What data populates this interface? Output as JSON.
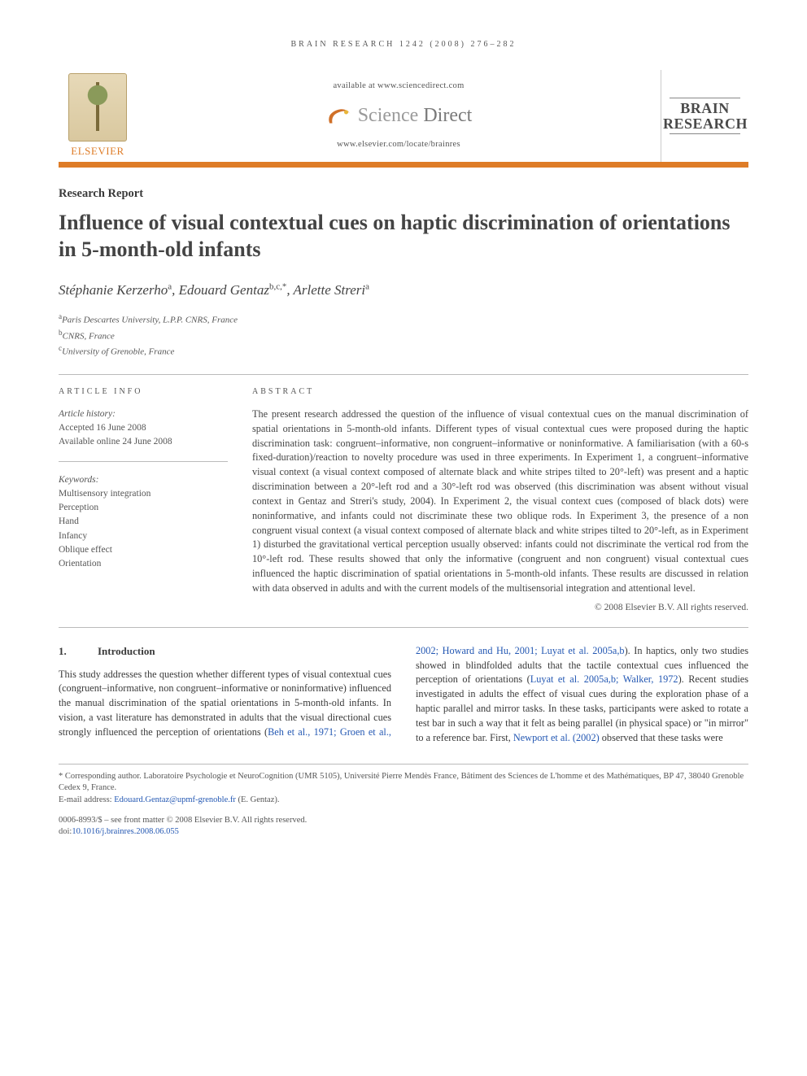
{
  "running_header": "BRAIN RESEARCH 1242 (2008) 276–282",
  "branding": {
    "publisher": "ELSEVIER",
    "available_line": "available at www.sciencedirect.com",
    "sd_name_thin": "Science",
    "sd_name_bold": "Direct",
    "journal_url": "www.elsevier.com/locate/brainres",
    "journal_title_1": "BRAIN",
    "journal_title_2": "RESEARCH",
    "accent_color": "#de7c27"
  },
  "article": {
    "type": "Research Report",
    "title": "Influence of visual contextual cues on haptic discrimination of orientations in 5-month-old infants",
    "authors_html": "Stéphanie Kerzerho<sup>a</sup>, Edouard Gentaz<sup>b,c,*</sup>, Arlette Streri<sup>a</sup>",
    "affiliations": [
      {
        "sup": "a",
        "text": "Paris Descartes University, L.P.P. CNRS, France"
      },
      {
        "sup": "b",
        "text": "CNRS, France"
      },
      {
        "sup": "c",
        "text": "University of Grenoble, France"
      }
    ]
  },
  "article_info": {
    "label": "ARTICLE INFO",
    "history_head": "Article history:",
    "accepted": "Accepted 16 June 2008",
    "online": "Available online 24 June 2008",
    "kw_head": "Keywords:",
    "keywords": [
      "Multisensory integration",
      "Perception",
      "Hand",
      "Infancy",
      "Oblique effect",
      "Orientation"
    ]
  },
  "abstract": {
    "label": "ABSTRACT",
    "text": "The present research addressed the question of the influence of visual contextual cues on the manual discrimination of spatial orientations in 5-month-old infants. Different types of visual contextual cues were proposed during the haptic discrimination task: congruent–informative, non congruent–informative or noninformative. A familiarisation (with a 60-s fixed-duration)/reaction to novelty procedure was used in three experiments. In Experiment 1, a congruent–informative visual context (a visual context composed of alternate black and white stripes tilted to 20°-left) was present and a haptic discrimination between a 20°-left rod and a 30°-left rod was observed (this discrimination was absent without visual context in Gentaz and Streri's study, 2004). In Experiment 2, the visual context cues (composed of black dots) were noninformative, and infants could not discriminate these two oblique rods. In Experiment 3, the presence of a non congruent visual context (a visual context composed of alternate black and white stripes tilted to 20°-left, as in Experiment 1) disturbed the gravitational vertical perception usually observed: infants could not discriminate the vertical rod from the 10°-left rod. These results showed that only the informative (congruent and non congruent) visual contextual cues influenced the haptic discrimination of spatial orientations in 5-month-old infants. These results are discussed in relation with data observed in adults and with the current models of the multisensorial integration and attentional level.",
    "copyright": "© 2008 Elsevier B.V. All rights reserved."
  },
  "section1": {
    "num": "1.",
    "title": "Introduction",
    "para_left": "This study addresses the question whether different types of visual contextual cues (congruent–informative, non congruent–informative or noninformative) influenced the manual discrimination of the spatial orientations in 5-month-old infants. In vision, a vast literature has demonstrated in adults that the visual directional cues strongly influenced the perception of orientations (",
    "cite1": "Beh et al., 1971; Groen et al., 2002;",
    "cite2": "Howard and Hu, 2001; Luyat et al. 2005a,b",
    "para_right_1": "). In haptics, only two studies showed in blindfolded adults that the tactile contextual cues influenced the perception of orientations (",
    "cite3": "Luyat et al. 2005a,b; Walker, 1972",
    "para_right_2": "). Recent studies investigated in adults the effect of visual cues during the exploration phase of a haptic parallel and mirror tasks. In these tasks, participants were asked to rotate a test bar in such a way that it felt as being parallel (in physical space) or \"in mirror\" to a reference bar. First, ",
    "cite4": "Newport et al. (2002)",
    "para_right_3": " observed that these tasks were"
  },
  "footnotes": {
    "corr": "* Corresponding author. Laboratoire Psychologie et NeuroCognition (UMR 5105), Université Pierre Mendès France, Bâtiment des Sciences de L'homme et des Mathématiques, BP 47, 38040 Grenoble Cedex 9, France.",
    "email_label": "E-mail address: ",
    "email": "Edouard.Gentaz@upmf-grenoble.fr",
    "email_tail": " (E. Gentaz).",
    "issn": "0006-8993/$ – see front matter © 2008 Elsevier B.V. All rights reserved.",
    "doi_label": "doi:",
    "doi": "10.1016/j.brainres.2008.06.055"
  }
}
